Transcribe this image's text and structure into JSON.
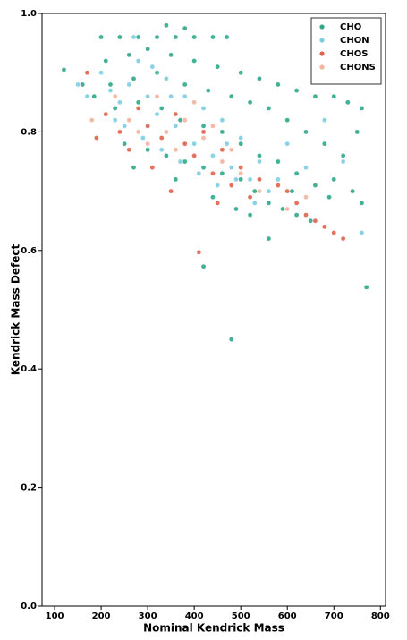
{
  "chart_data": {
    "type": "scatter",
    "xlabel": "Nominal Kendrick Mass",
    "ylabel": "Kendrick Mass Defect",
    "xlim": [
      73,
      811
    ],
    "ylim": [
      0,
      1
    ],
    "xticks": [
      100,
      200,
      300,
      400,
      500,
      600,
      700,
      800
    ],
    "yticks": [
      {
        "value": 0,
        "label": "0.0"
      },
      0.2,
      0.4,
      0.6,
      0.8,
      {
        "value": 1,
        "label": "1.0"
      }
    ],
    "legend": "upper right",
    "series": [
      {
        "name": "CHO",
        "color": "#2fa88a",
        "x": [
          200,
          240,
          280,
          320,
          360,
          400,
          440,
          470,
          340,
          380,
          210,
          260,
          300,
          350,
          400,
          450,
          500,
          540,
          580,
          620,
          660,
          700,
          730,
          760,
          720,
          750,
          220,
          270,
          320,
          380,
          430,
          480,
          520,
          560,
          600,
          640,
          680,
          720,
          700,
          740,
          760,
          230,
          280,
          330,
          370,
          420,
          460,
          500,
          540,
          580,
          620,
          660,
          690,
          250,
          300,
          340,
          380,
          420,
          460,
          500,
          530,
          560,
          590,
          620,
          650,
          270,
          360,
          440,
          490,
          560,
          520,
          610,
          120,
          420,
          480,
          770,
          160,
          185
        ],
        "y": [
          0.96,
          0.96,
          0.96,
          0.96,
          0.96,
          0.96,
          0.96,
          0.96,
          0.98,
          0.975,
          0.92,
          0.93,
          0.94,
          0.93,
          0.92,
          0.91,
          0.9,
          0.89,
          0.88,
          0.87,
          0.86,
          0.86,
          0.85,
          0.84,
          0.89,
          0.8,
          0.88,
          0.89,
          0.9,
          0.88,
          0.87,
          0.86,
          0.85,
          0.84,
          0.82,
          0.8,
          0.78,
          0.76,
          0.72,
          0.7,
          0.68,
          0.84,
          0.85,
          0.84,
          0.82,
          0.81,
          0.8,
          0.78,
          0.76,
          0.75,
          0.73,
          0.71,
          0.69,
          0.78,
          0.77,
          0.76,
          0.75,
          0.74,
          0.73,
          0.72,
          0.7,
          0.68,
          0.67,
          0.66,
          0.65,
          0.74,
          0.72,
          0.69,
          0.67,
          0.62,
          0.66,
          0.7,
          0.905,
          0.573,
          0.45,
          0.538,
          0.88,
          0.86
        ]
      },
      {
        "name": "CHON",
        "color": "#7fcde2",
        "x": [
          200,
          220,
          240,
          260,
          280,
          300,
          320,
          340,
          360,
          380,
          400,
          420,
          440,
          460,
          480,
          500,
          520,
          540,
          560,
          580,
          250,
          290,
          330,
          370,
          410,
          450,
          490,
          530,
          310,
          270,
          150,
          170,
          600,
          640,
          680,
          720,
          760,
          230,
          350,
          470
        ],
        "y": [
          0.9,
          0.87,
          0.85,
          0.88,
          0.92,
          0.86,
          0.83,
          0.89,
          0.81,
          0.86,
          0.78,
          0.84,
          0.76,
          0.82,
          0.74,
          0.79,
          0.72,
          0.75,
          0.7,
          0.72,
          0.81,
          0.79,
          0.77,
          0.75,
          0.73,
          0.71,
          0.72,
          0.68,
          0.91,
          0.96,
          0.88,
          0.86,
          0.78,
          0.74,
          0.82,
          0.75,
          0.63,
          0.82,
          0.86,
          0.78
        ]
      },
      {
        "name": "CHOS",
        "color": "#e0624d",
        "x": [
          210,
          240,
          260,
          280,
          300,
          330,
          360,
          380,
          400,
          420,
          440,
          460,
          480,
          500,
          520,
          540,
          580,
          600,
          620,
          640,
          660,
          680,
          700,
          720,
          350,
          410,
          190,
          170,
          450,
          310
        ],
        "y": [
          0.83,
          0.8,
          0.77,
          0.84,
          0.81,
          0.79,
          0.83,
          0.78,
          0.76,
          0.8,
          0.73,
          0.77,
          0.71,
          0.74,
          0.69,
          0.72,
          0.71,
          0.7,
          0.68,
          0.66,
          0.65,
          0.64,
          0.63,
          0.62,
          0.7,
          0.597,
          0.79,
          0.9,
          0.68,
          0.74
        ]
      },
      {
        "name": "CHONS",
        "color": "#f3b39f",
        "x": [
          260,
          300,
          340,
          380,
          420,
          460,
          500,
          400,
          360,
          440,
          480,
          320,
          280,
          230,
          540,
          600,
          640,
          180
        ],
        "y": [
          0.82,
          0.78,
          0.8,
          0.82,
          0.79,
          0.75,
          0.73,
          0.85,
          0.77,
          0.81,
          0.77,
          0.86,
          0.8,
          0.86,
          0.7,
          0.67,
          0.69,
          0.82
        ]
      }
    ]
  }
}
